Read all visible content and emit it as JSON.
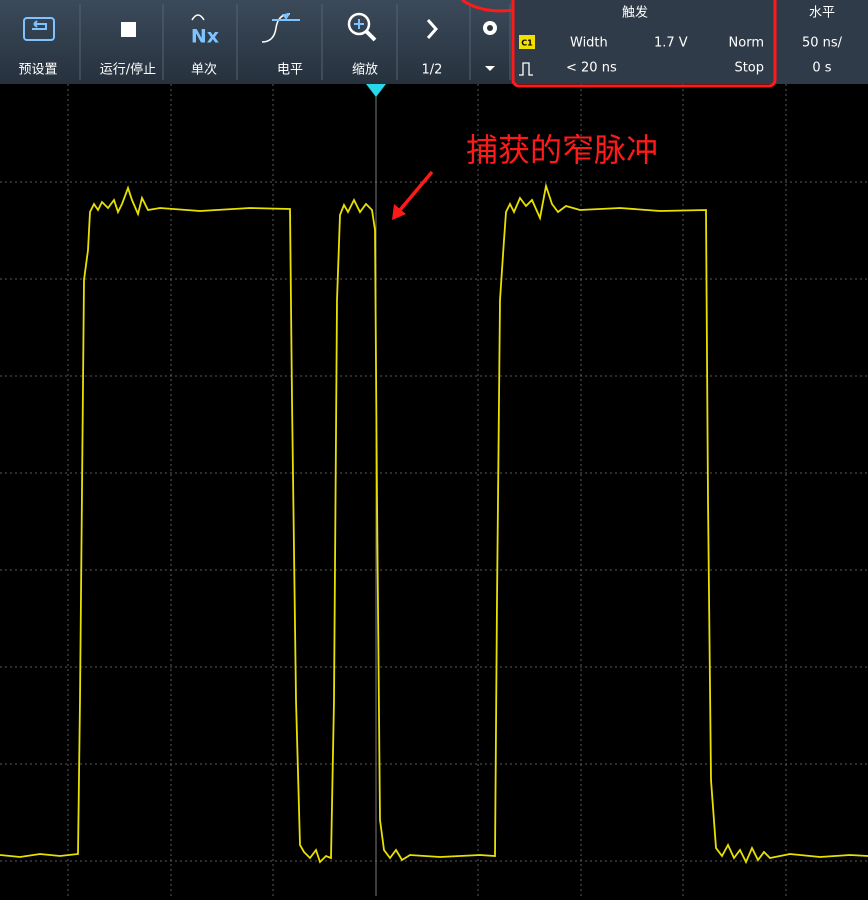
{
  "toolbar": {
    "buttons": [
      {
        "label": "预设置"
      },
      {
        "label": "运行/停止"
      },
      {
        "label": "单次",
        "icon_text": "Nx"
      },
      {
        "label": "电平"
      },
      {
        "label": "缩放"
      },
      {
        "label": "1/2"
      }
    ]
  },
  "trigger": {
    "title": "触发",
    "channel": "C1",
    "type": "Width",
    "level": "1.7 V",
    "mode": "Norm",
    "condition": "< 20 ns",
    "state": "Stop"
  },
  "horizontal": {
    "title": "水平",
    "scale": "50 ns/",
    "position": "0 s"
  },
  "annotation": "捕获的窄脉冲"
}
